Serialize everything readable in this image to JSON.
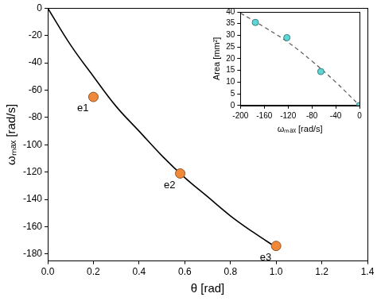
{
  "chart_data": [
    {
      "type": "scatter",
      "x_label": "θ [rad]",
      "y_label": "ωₘₐₓ [rad/s]",
      "xlim": [
        0,
        1.4
      ],
      "xticks": [
        {
          "value": 0,
          "label": "0.0"
        },
        0.2,
        0.4,
        0.6,
        0.8,
        {
          "value": 1,
          "label": "1.0"
        },
        1.2,
        1.4
      ],
      "ylim": [
        -185,
        0
      ],
      "yticks": [
        -180,
        -160,
        -140,
        -120,
        -100,
        -80,
        -60,
        -40,
        -20,
        0
      ],
      "grid": false,
      "series": [
        {
          "type": "line",
          "color": "#000000",
          "line_style": "solid",
          "x": [
            0,
            0.1,
            0.2,
            0.3,
            0.4,
            0.5,
            0.6,
            0.7,
            0.8,
            0.9,
            1.0
          ],
          "values": [
            0,
            -27,
            -50,
            -72,
            -90,
            -108,
            -124,
            -138,
            -152,
            -164,
            -175
          ]
        },
        {
          "type": "scatter",
          "color": "#f0883a",
          "marker": "circle",
          "x": [
            0.2,
            0.58,
            1.0
          ],
          "values": [
            -65,
            -121,
            -174
          ],
          "labels": [
            "e1",
            "e2",
            "e3"
          ]
        }
      ]
    },
    {
      "type": "scatter",
      "x_label": "ωₘₐₓ [rad/s]",
      "y_label": "Area [mm²]",
      "xlim": [
        -200,
        0
      ],
      "xticks": [
        -200,
        -160,
        -120,
        -80,
        -40,
        0
      ],
      "ylim": [
        0,
        40
      ],
      "yticks": [
        0,
        5,
        10,
        15,
        20,
        25,
        30,
        35,
        40
      ],
      "grid": false,
      "series": [
        {
          "type": "line",
          "color": "#555555",
          "line_style": "dashed",
          "x": [
            -200,
            -160,
            -120,
            -80,
            -40,
            0
          ],
          "values": [
            39.5,
            33.5,
            27,
            19,
            10,
            0
          ]
        },
        {
          "type": "scatter",
          "color": "#5fd6d6",
          "marker": "circle",
          "x": [
            -175,
            -122,
            -65,
            0
          ],
          "values": [
            35.5,
            29,
            14.5,
            0
          ]
        }
      ]
    }
  ]
}
